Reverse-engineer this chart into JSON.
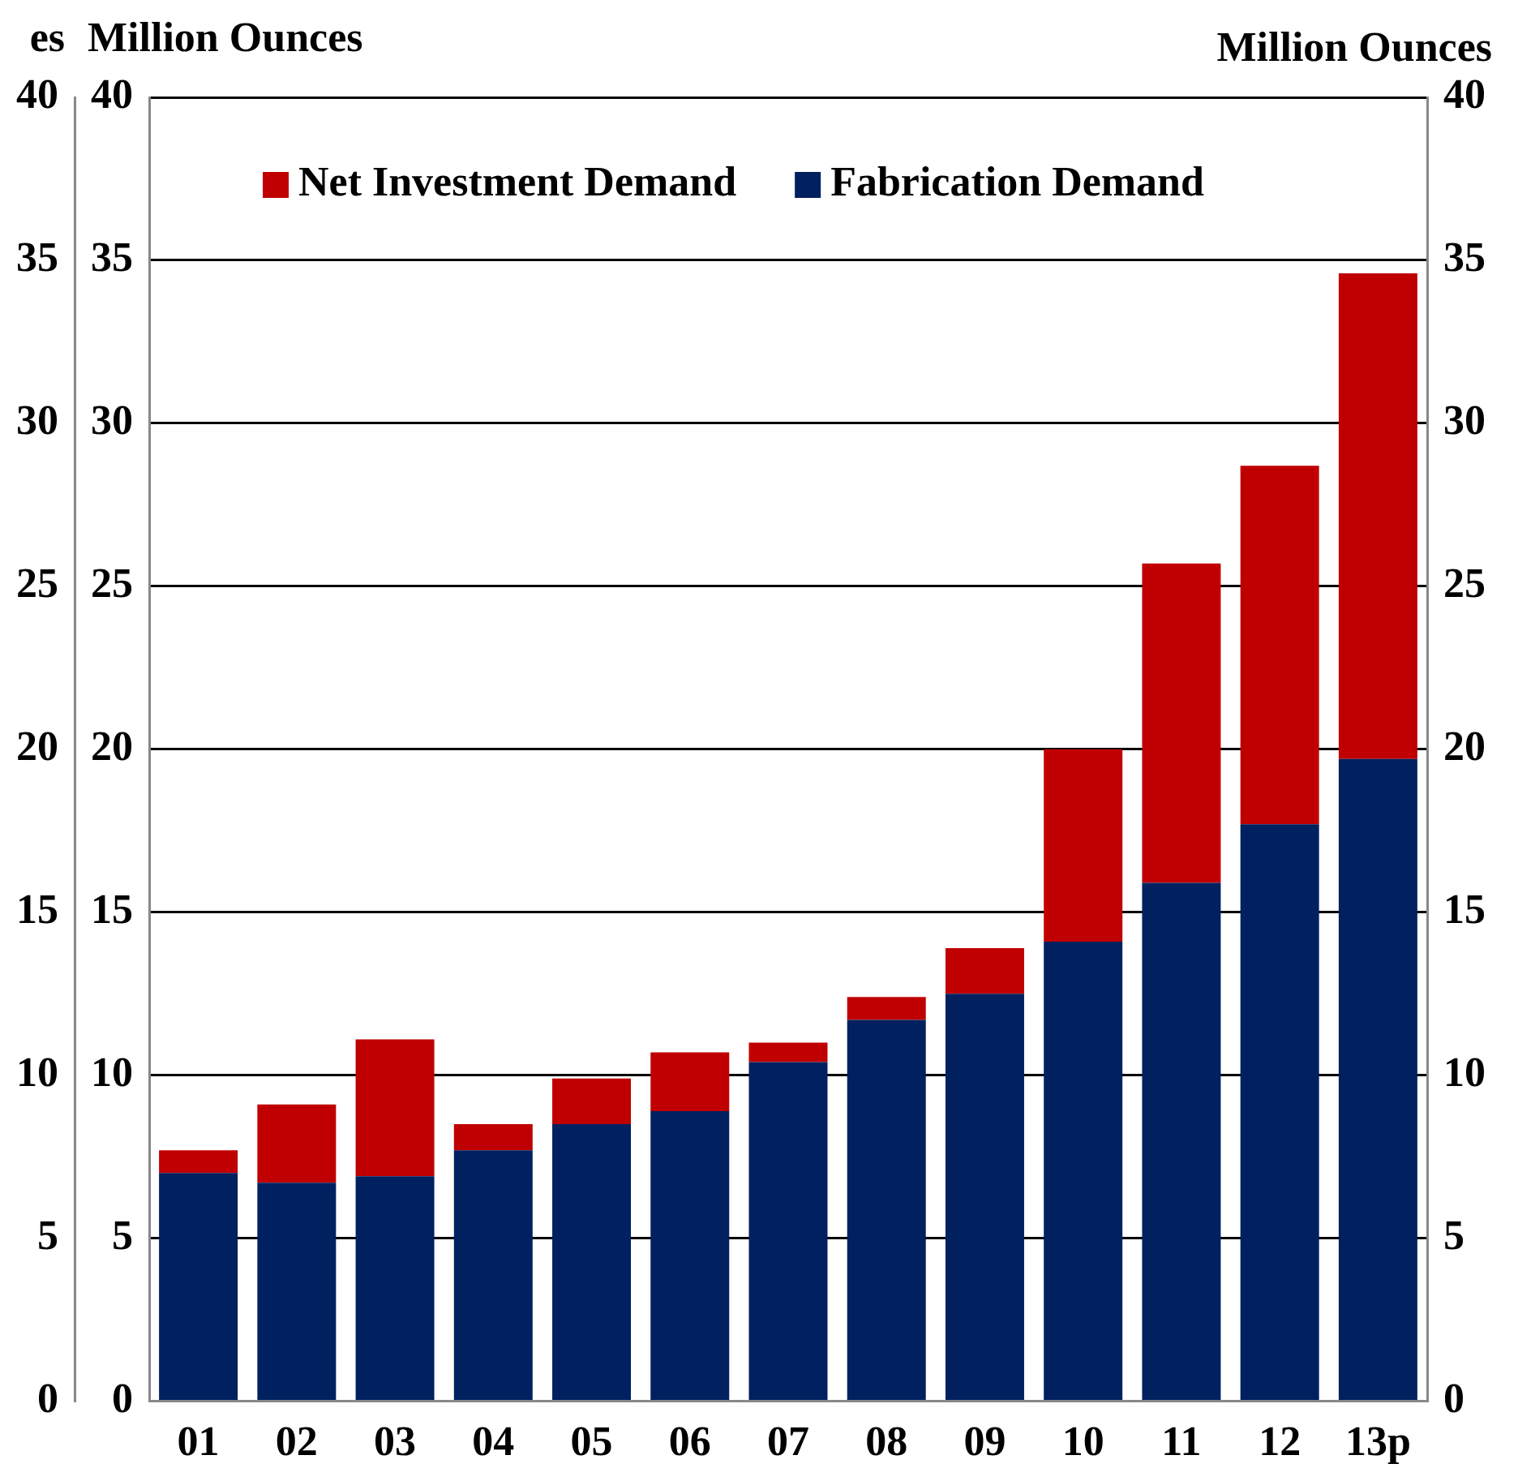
{
  "chart_data": {
    "type": "bar",
    "stacked": true,
    "ylabel": "Million Ounces",
    "y2label": "Million Ounces",
    "y3label": "es",
    "categories": [
      "01",
      "02",
      "03",
      "04",
      "05",
      "06",
      "07",
      "08",
      "09",
      "10",
      "11",
      "12",
      "13p"
    ],
    "series": [
      {
        "name": "Fabrication Demand",
        "color": "#002060",
        "values": [
          7.0,
          6.7,
          6.9,
          7.7,
          8.5,
          8.9,
          10.4,
          11.7,
          12.5,
          14.1,
          15.9,
          17.7,
          19.7
        ]
      },
      {
        "name": "Net Investment Demand",
        "color": "#c00000",
        "values": [
          0.7,
          2.4,
          4.2,
          0.8,
          1.4,
          1.8,
          0.6,
          0.7,
          1.4,
          5.9,
          9.8,
          11.0,
          14.9
        ]
      }
    ],
    "ylim": [
      0,
      40
    ],
    "yticks": [
      0,
      5,
      10,
      15,
      20,
      25,
      30,
      35,
      40
    ],
    "y2lim": [
      0,
      40
    ],
    "y2ticks": [
      0,
      5,
      10,
      15,
      20,
      25,
      30,
      35,
      40
    ],
    "y3lim": [
      0,
      40
    ],
    "y3ticks": [
      0,
      5,
      10,
      15,
      20,
      25,
      30,
      35,
      40
    ],
    "grid": "y",
    "legend": "top"
  }
}
